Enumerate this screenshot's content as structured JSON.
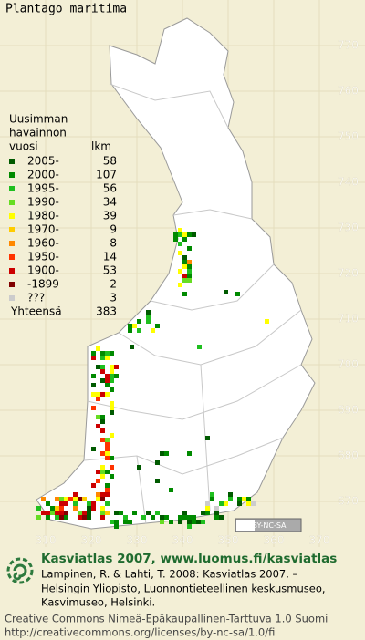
{
  "title": "Plantago maritima",
  "legend": {
    "header": [
      "Uusimman",
      "havainnon",
      "vuosi"
    ],
    "count_header": "lkm",
    "rows": [
      {
        "label": "2005-",
        "count": 58,
        "color": "#005a00"
      },
      {
        "label": "2000-",
        "count": 107,
        "color": "#008a00"
      },
      {
        "label": "1995-",
        "count": 56,
        "color": "#1fbf1f"
      },
      {
        "label": "1990-",
        "count": 34,
        "color": "#66dd22"
      },
      {
        "label": "1980-",
        "count": 39,
        "color": "#ffff00"
      },
      {
        "label": "1970-",
        "count": 9,
        "color": "#ffcc00"
      },
      {
        "label": "1960-",
        "count": 8,
        "color": "#ff8800"
      },
      {
        "label": "1950-",
        "count": 14,
        "color": "#ff3300"
      },
      {
        "label": "1900-",
        "count": 53,
        "color": "#cc0000"
      },
      {
        "label": "-1899",
        "count": 2,
        "color": "#800000"
      },
      {
        "label": "???",
        "count": 3,
        "color": "#cccccc"
      }
    ],
    "total_label": "Yhteensä",
    "total": 383
  },
  "grid_labels": {
    "north": [
      770,
      760,
      750,
      740,
      730,
      720,
      710,
      700,
      690,
      680,
      670
    ],
    "east": [
      310,
      320,
      330,
      340,
      350,
      360,
      370
    ]
  },
  "license_badge": "BY-NC-SA",
  "footer": {
    "heading": "Kasviatlas 2007, www.luomus.fi/kasviatlas",
    "citation": [
      "Lampinen, R. & Lahti, T. 2008: Kasviatlas 2007. –",
      "Helsingin Yliopisto, Luonnontieteellinen keskusmuseo,",
      "Kasvimuseo, Helsinki."
    ],
    "license": [
      "Creative Commons Nimeä-Epäkaupallinen-Tarttuva 1.0 Suomi",
      "http://creativecommons.org/licenses/by-nc-sa/1.0/fi"
    ]
  }
}
